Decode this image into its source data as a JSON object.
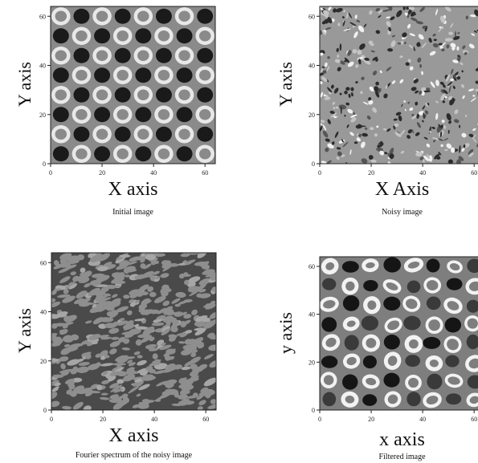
{
  "chart_data": [
    {
      "type": "heatmap",
      "pattern": "regular",
      "xlabel": "X axis",
      "ylabel": "Y axis",
      "caption": "Initial image",
      "xticks": [
        0,
        20,
        40,
        60
      ],
      "yticks": [
        0,
        20,
        40,
        60
      ],
      "xlim": [
        0,
        64
      ],
      "ylim": [
        0,
        64
      ],
      "grid": false
    },
    {
      "type": "heatmap",
      "pattern": "noise",
      "xlabel": "X Axis",
      "ylabel": "Y axis",
      "caption": "Noisy image",
      "xticks": [
        0,
        20,
        40,
        60
      ],
      "yticks": [
        0,
        20,
        40,
        60
      ],
      "xlim": [
        0,
        64
      ],
      "ylim": [
        0,
        64
      ],
      "grid": false
    },
    {
      "type": "heatmap",
      "pattern": "spectrum",
      "xlabel": "X axis",
      "ylabel": "Y axis",
      "caption": "Fourier spectrum of the noisy image",
      "xticks": [
        0,
        20,
        40,
        60
      ],
      "yticks": [
        0,
        20,
        40,
        60
      ],
      "xlim": [
        0,
        64
      ],
      "ylim": [
        0,
        64
      ],
      "grid": false
    },
    {
      "type": "heatmap",
      "pattern": "filtered",
      "xlabel": "x axis",
      "ylabel": "y axis",
      "caption": "Filtered image",
      "xticks": [
        0,
        20,
        40,
        60
      ],
      "yticks": [
        0,
        20,
        40,
        60
      ],
      "xlim": [
        0,
        64
      ],
      "ylim": [
        0,
        64
      ],
      "grid": false
    }
  ]
}
